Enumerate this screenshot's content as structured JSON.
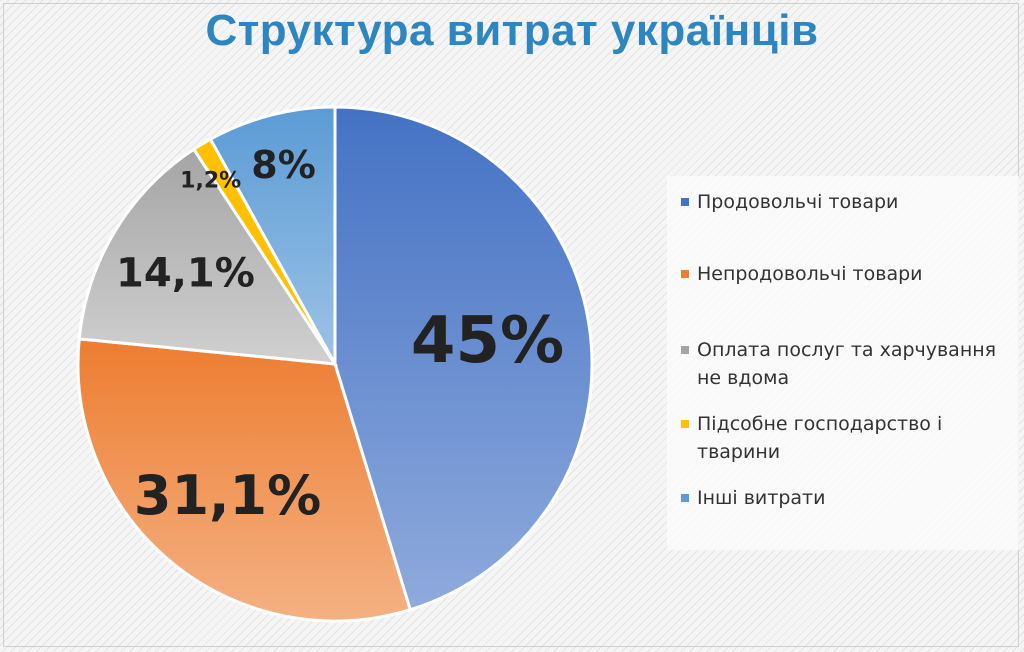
{
  "title": "Структура витрат українців",
  "chart_data": {
    "type": "pie",
    "title": "Структура витрат українців",
    "legend_position": "right",
    "slices": [
      {
        "name": "Продовольчі товари",
        "value": 45,
        "label": "45%",
        "color": "#4472c4",
        "color_light": "#8faadc"
      },
      {
        "name": "Непродовольчі товари",
        "value": 31.1,
        "label": "31,1%",
        "color": "#ed7d31",
        "color_light": "#f4b183"
      },
      {
        "name": "Оплата послуг та харчування не вдома",
        "value": 14.1,
        "label": "14,1%",
        "color": "#a5a5a5",
        "color_light": "#d0d0d0"
      },
      {
        "name": "Підсобне господарство і тварини",
        "value": 1.2,
        "label": "1,2%",
        "color": "#ffc000",
        "color_light": "#ffc000"
      },
      {
        "name": "Інші витрати",
        "value": 8,
        "label": "8%",
        "color": "#5b9bd5",
        "color_light": "#9dc3e6"
      }
    ]
  }
}
